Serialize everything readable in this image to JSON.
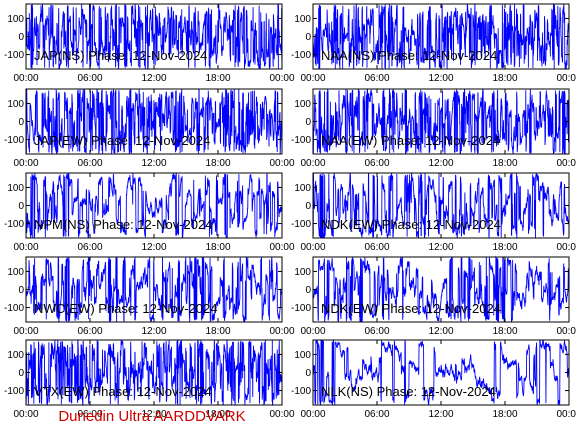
{
  "figure": {
    "footer": "Dunedin Ultra AARDDVARK",
    "footer_color": "#d00000",
    "trace_color": "#0000ff",
    "frame_color": "#000000"
  },
  "chart_data": [
    {
      "type": "line",
      "title": "JAP(NS) Phase: 12-Nov-2024",
      "x_ticks": [
        "00:00",
        "06:00",
        "12:00",
        "18:00",
        "00:00"
      ],
      "y_ticks": [
        100,
        0,
        -100
      ],
      "ylim": [
        -180,
        180
      ],
      "xlim_hours": [
        0,
        24
      ],
      "density": "very-dense",
      "seed": 11
    },
    {
      "type": "line",
      "title": "NAA(NS) Phase: 12-Nov-2024",
      "x_ticks": [
        "00:00",
        "06:00",
        "12:00",
        "18:00",
        "00:00"
      ],
      "y_ticks": [
        100,
        0,
        -100
      ],
      "ylim": [
        -180,
        180
      ],
      "xlim_hours": [
        0,
        24
      ],
      "density": "very-dense",
      "seed": 23
    },
    {
      "type": "line",
      "title": "JAP(EW) Phase: 12-Nov-2024",
      "x_ticks": [
        "00:00",
        "06:00",
        "12:00",
        "18:00",
        "00:00"
      ],
      "y_ticks": [
        100,
        0,
        -100
      ],
      "ylim": [
        -180,
        180
      ],
      "xlim_hours": [
        0,
        24
      ],
      "density": "very-dense",
      "seed": 37
    },
    {
      "type": "line",
      "title": "NAA(EW) Phase: 12-Nov-2024",
      "x_ticks": [
        "00:00",
        "06:00",
        "12:00",
        "18:00",
        "00:00"
      ],
      "y_ticks": [
        100,
        0,
        -100
      ],
      "ylim": [
        -180,
        180
      ],
      "xlim_hours": [
        0,
        24
      ],
      "density": "very-dense",
      "seed": 41
    },
    {
      "type": "line",
      "title": "NPM(NS) Phase: 12-Nov-2024",
      "x_ticks": [
        "00:00",
        "06:00",
        "12:00",
        "18:00",
        "00:00"
      ],
      "y_ticks": [
        100,
        0,
        -100
      ],
      "ylim": [
        -180,
        180
      ],
      "xlim_hours": [
        0,
        24
      ],
      "density": "dense",
      "seed": 53
    },
    {
      "type": "line",
      "title": "NDK(EW) Phase: 12-Nov-2024",
      "x_ticks": [
        "00:00",
        "06:00",
        "12:00",
        "18:00",
        "00:00"
      ],
      "y_ticks": [
        100,
        0,
        -100
      ],
      "ylim": [
        -180,
        180
      ],
      "xlim_hours": [
        0,
        24
      ],
      "density": "dense",
      "seed": 67
    },
    {
      "type": "line",
      "title": "NWC(EW) Phase: 12-Nov-2024",
      "x_ticks": [
        "00:00",
        "06:00",
        "12:00",
        "18:00",
        "00:00"
      ],
      "y_ticks": [
        100,
        0,
        -100
      ],
      "ylim": [
        -180,
        180
      ],
      "xlim_hours": [
        0,
        24
      ],
      "density": "dense",
      "seed": 71
    },
    {
      "type": "line",
      "title": "NDK(EW) Phase: 12-Nov-2024",
      "x_ticks": [
        "00:00",
        "06:00",
        "12:00",
        "18:00",
        "00:00"
      ],
      "y_ticks": [
        100,
        0,
        -100
      ],
      "ylim": [
        -180,
        180
      ],
      "xlim_hours": [
        0,
        24
      ],
      "density": "dense",
      "seed": 83
    },
    {
      "type": "line",
      "title": "VTX(EW) Phase: 12-Nov-2024",
      "x_ticks": [
        "00:00",
        "06:00",
        "12:00",
        "18:00",
        "00:00"
      ],
      "y_ticks": [
        100,
        0,
        -100
      ],
      "ylim": [
        -180,
        180
      ],
      "xlim_hours": [
        0,
        24
      ],
      "density": "very-dense",
      "seed": 97
    },
    {
      "type": "line",
      "title": "NLK(NS) Phase: 12-Nov-2024",
      "x_ticks": [
        "00:00",
        "06:00",
        "12:00",
        "18:00",
        "00:00"
      ],
      "y_ticks": [
        100,
        0,
        -100
      ],
      "ylim": [
        -180,
        180
      ],
      "xlim_hours": [
        0,
        24
      ],
      "density": "medium",
      "seed": 101
    }
  ]
}
